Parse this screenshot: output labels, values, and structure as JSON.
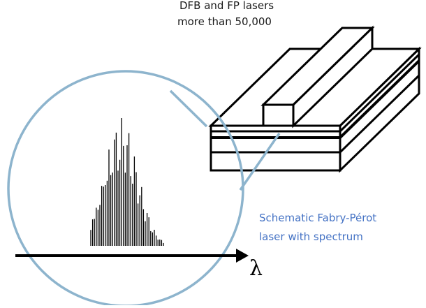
{
  "top_note": {
    "line1": "DFB and FP lasers",
    "line2": "more than 50,000"
  },
  "caption": {
    "line1": "Schematic Fabry-Pérot",
    "line2": "laser with spectrum",
    "color": "#4472c4"
  },
  "axis": {
    "label": "λ"
  },
  "colors": {
    "magnifier_circle": "#8db4cd",
    "laser_outline": "#000000",
    "spectrum": "#000000"
  }
}
